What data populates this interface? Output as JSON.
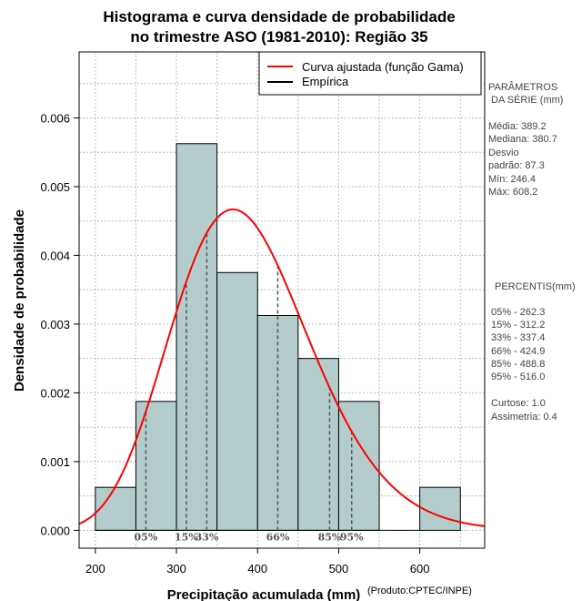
{
  "chart_data": {
    "type": "histogram",
    "title": [
      "Histograma e curva densidade de probabilidade",
      "no trimestre ASO (1981-2010): Região 35"
    ],
    "xlabel": "Precipitação acumulada (mm)",
    "ylabel": "Densidade de probabilidade",
    "credit": "(Produto:CPTEC/INPE)",
    "xlim": [
      180,
      680
    ],
    "ylim": [
      -0.00026,
      0.00696
    ],
    "xticks": [
      200,
      300,
      400,
      500,
      600
    ],
    "yticks": [
      0.0,
      0.001,
      0.002,
      0.003,
      0.004,
      0.005,
      0.006
    ],
    "ytick_labels": [
      "0.000",
      "0.001",
      "0.002",
      "0.003",
      "0.004",
      "0.005",
      "0.006"
    ],
    "grid": true,
    "bin_edges": [
      200,
      250,
      300,
      350,
      400,
      450,
      500,
      550,
      600,
      650
    ],
    "densities": [
      0.000625,
      0.001875,
      0.005625,
      0.00375,
      0.003125,
      0.0025,
      0.001875,
      0.0,
      0.000625
    ],
    "bar_color": "#b4cccc",
    "curve": {
      "name": "Curva ajustada (função Gama)",
      "color": "#ff0000",
      "mean": 389.2,
      "sd": 87.3
    },
    "legend": [
      {
        "label": "Curva ajustada (função Gama)",
        "color": "#ff0000"
      },
      {
        "label": "Empírica",
        "color": "#000000"
      }
    ],
    "percentiles": [
      {
        "label": "05%",
        "value": 262.3
      },
      {
        "label": "15%",
        "value": 312.2
      },
      {
        "label": "33%",
        "value": 337.4
      },
      {
        "label": "66%",
        "value": 424.9
      },
      {
        "label": "85%",
        "value": 488.8
      },
      {
        "label": "95%",
        "value": 516.0
      }
    ],
    "stats_panel": {
      "params_title": [
        "PARÂMETROS",
        "DA SÉRIE (mm)"
      ],
      "lines": [
        "Média:  389.2",
        "Mediana:  380.7",
        "Desvio",
        "padrão:  87.3",
        "Mín:  246.4",
        "Máx:  608.2"
      ],
      "percentis_title": "PERCENTIS(mm)",
      "percentis_lines": [
        "05% -  262.3",
        "15% -  312.2",
        "33% -  337.4",
        "66% -  424.9",
        "85% -  488.8",
        "95% -  516.0"
      ],
      "extra_lines": [
        "Curtose:  1.0",
        "Assimetria:  0.4"
      ]
    }
  }
}
